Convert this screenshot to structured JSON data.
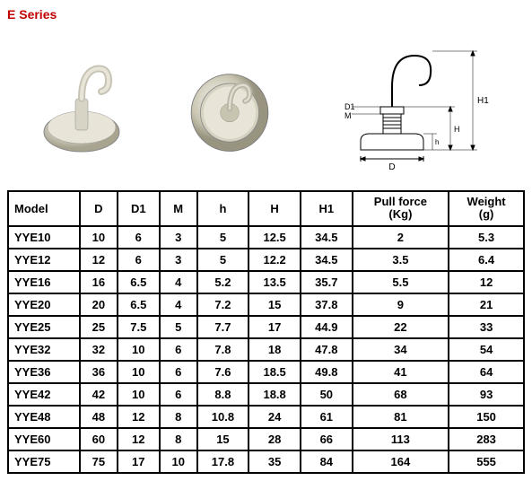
{
  "title": "E Series",
  "table": {
    "columns": [
      "Model",
      "D",
      "D1",
      "M",
      "h",
      "H",
      "H1",
      "Pull force (Kg)",
      "Weight (g)"
    ],
    "column_two_line": {
      "7": [
        "Pull force",
        "(Kg)"
      ],
      "8": [
        "Weight",
        "(g)"
      ]
    },
    "rows": [
      [
        "YYE10",
        "10",
        "6",
        "3",
        "5",
        "12.5",
        "34.5",
        "2",
        "5.3"
      ],
      [
        "YYE12",
        "12",
        "6",
        "3",
        "5",
        "12.2",
        "34.5",
        "3.5",
        "6.4"
      ],
      [
        "YYE16",
        "16",
        "6.5",
        "4",
        "5.2",
        "13.5",
        "35.7",
        "5.5",
        "12"
      ],
      [
        "YYE20",
        "20",
        "6.5",
        "4",
        "7.2",
        "15",
        "37.8",
        "9",
        "21"
      ],
      [
        "YYE25",
        "25",
        "7.5",
        "5",
        "7.7",
        "17",
        "44.9",
        "22",
        "33"
      ],
      [
        "YYE32",
        "32",
        "10",
        "6",
        "7.8",
        "18",
        "47.8",
        "34",
        "54"
      ],
      [
        "YYE36",
        "36",
        "10",
        "6",
        "7.6",
        "18.5",
        "49.8",
        "41",
        "64"
      ],
      [
        "YYE42",
        "42",
        "10",
        "6",
        "8.8",
        "18.8",
        "50",
        "68",
        "93"
      ],
      [
        "YYE48",
        "48",
        "12",
        "8",
        "10.8",
        "24",
        "61",
        "81",
        "150"
      ],
      [
        "YYE60",
        "60",
        "12",
        "8",
        "15",
        "28",
        "66",
        "113",
        "283"
      ],
      [
        "YYE75",
        "75",
        "17",
        "10",
        "17.8",
        "35",
        "84",
        "164",
        "555"
      ]
    ]
  },
  "styling": {
    "title_color": "#c00000",
    "border_color": "#000000",
    "background": "#ffffff",
    "font_family": "Arial",
    "header_fontsize": 13,
    "cell_fontsize": 13,
    "border_width": 2
  },
  "images": {
    "photo1_desc": "magnet-hook-angle-view",
    "photo2_desc": "magnet-hook-top-view",
    "diagram_labels": [
      "D1",
      "M",
      "D",
      "h",
      "H",
      "H1"
    ]
  }
}
